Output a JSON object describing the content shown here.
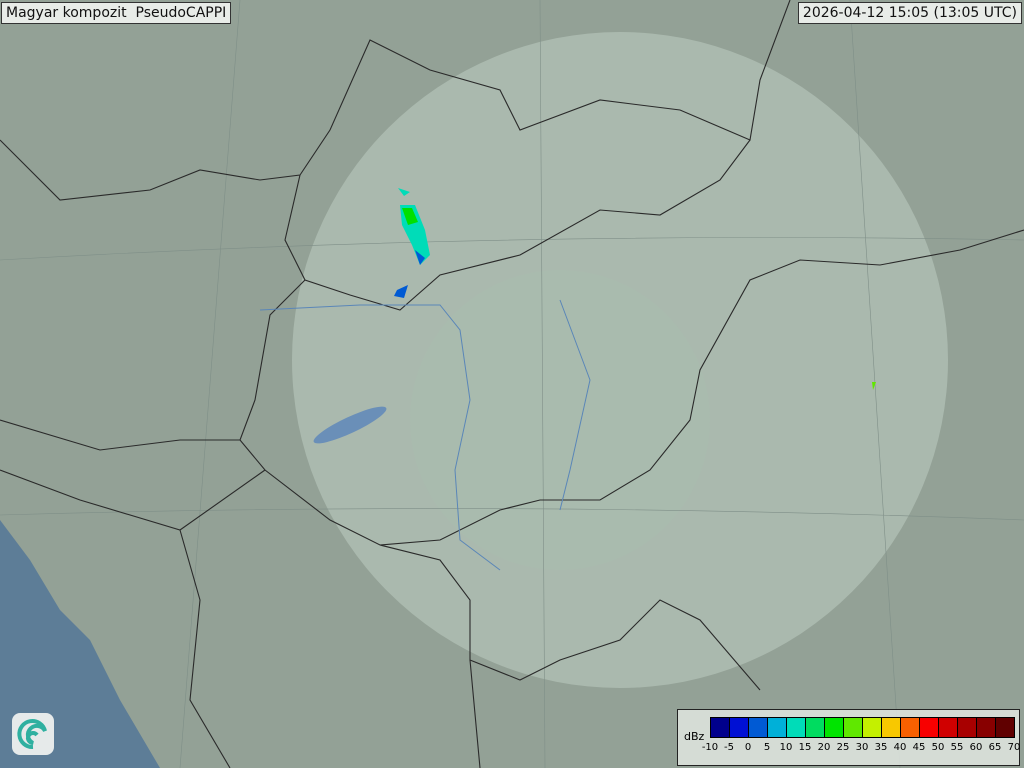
{
  "header": {
    "title": "Magyar kompozit  PseudoCAPPI",
    "timestamp": "2026-04-12 15:05 (13:05 UTC)"
  },
  "legend": {
    "unit": "dBz",
    "ticks": [
      "-10",
      "-5",
      "0",
      "5",
      "10",
      "15",
      "20",
      "25",
      "30",
      "35",
      "40",
      "45",
      "50",
      "55",
      "60",
      "65",
      "70"
    ],
    "colors": [
      "#00008c",
      "#0010d4",
      "#005ad4",
      "#00b0d8",
      "#00dcb8",
      "#00dc60",
      "#00e400",
      "#60e800",
      "#c4f000",
      "#f8c800",
      "#f86000",
      "#f80000",
      "#d00000",
      "#a80000",
      "#880000",
      "#600000"
    ]
  },
  "logo": {
    "icon": "swirl-logo-icon"
  }
}
